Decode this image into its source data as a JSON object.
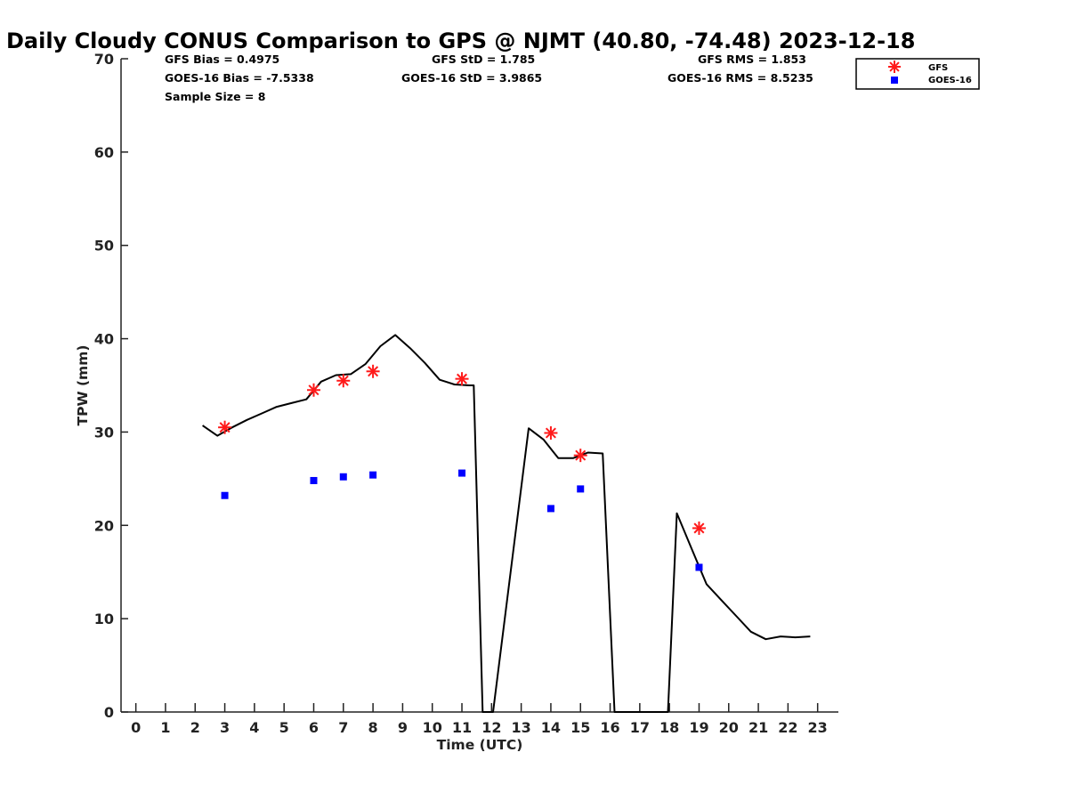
{
  "chart_data": {
    "type": "line",
    "title": "Daily Cloudy CONUS Comparison to GPS @ NJMT (40.80, -74.48) 2023-12-18",
    "xlabel": "Time (UTC)",
    "ylabel": "TPW (mm)",
    "xlim": [
      -0.5,
      23.7
    ],
    "ylim": [
      0,
      70
    ],
    "x_ticks": [
      "0",
      "1",
      "2",
      "3",
      "4",
      "5",
      "6",
      "7",
      "8",
      "9",
      "10",
      "11",
      "12",
      "13",
      "14",
      "15",
      "16",
      "17",
      "18",
      "19",
      "20",
      "21",
      "22",
      "23"
    ],
    "y_ticks": [
      "0",
      "10",
      "20",
      "30",
      "40",
      "50",
      "60",
      "70"
    ],
    "grid": false,
    "legend_position": "top-right",
    "stats": {
      "gfs_bias": "GFS Bias = 0.4975",
      "goes_bias": "GOES-16 Bias = -7.5338",
      "sample_size": "Sample Size = 8",
      "gfs_std": "GFS StD = 1.785",
      "goes_std": "GOES-16 StD = 3.9865",
      "gfs_rms": "GFS RMS = 1.853",
      "goes_rms": "GOES-16 RMS = 8.5235"
    },
    "series": [
      {
        "name": "",
        "kind": "line",
        "color": "#000000",
        "points": [
          [
            2.25,
            30.7
          ],
          [
            2.75,
            29.6
          ],
          [
            3.25,
            30.5
          ],
          [
            3.75,
            31.3
          ],
          [
            4.25,
            32.0
          ],
          [
            4.75,
            32.7
          ],
          [
            5.25,
            33.1
          ],
          [
            5.75,
            33.5
          ],
          [
            6.25,
            35.4
          ],
          [
            6.75,
            36.1
          ],
          [
            7.25,
            36.2
          ],
          [
            7.75,
            37.3
          ],
          [
            8.25,
            39.2
          ],
          [
            8.75,
            40.4
          ],
          [
            9.25,
            39.0
          ],
          [
            9.75,
            37.4
          ],
          [
            10.25,
            35.6
          ],
          [
            10.75,
            35.1
          ],
          [
            11.25,
            35.0
          ],
          [
            11.4,
            35.0
          ],
          [
            11.7,
            0
          ],
          [
            12.05,
            0
          ],
          [
            13.25,
            30.4
          ],
          [
            13.75,
            29.2
          ],
          [
            14.25,
            27.2
          ],
          [
            14.75,
            27.2
          ],
          [
            15.25,
            27.8
          ],
          [
            15.75,
            27.7
          ],
          [
            16.15,
            0
          ],
          [
            17.95,
            0
          ],
          [
            18.25,
            21.3
          ],
          [
            18.75,
            17.5
          ],
          [
            19.25,
            13.7
          ],
          [
            19.75,
            12.0
          ],
          [
            20.25,
            10.3
          ],
          [
            20.75,
            8.6
          ],
          [
            21.25,
            7.8
          ],
          [
            21.75,
            8.1
          ],
          [
            22.25,
            8.0
          ],
          [
            22.75,
            8.1
          ]
        ]
      },
      {
        "name": "GFS",
        "kind": "asterisk",
        "color": "#ff1a1a",
        "x": [
          3,
          6,
          7,
          8,
          11,
          14,
          15,
          19
        ],
        "y": [
          30.5,
          34.5,
          35.5,
          36.5,
          35.7,
          29.9,
          27.5,
          19.7
        ]
      },
      {
        "name": "GOES-16",
        "kind": "square",
        "color": "#0000ff",
        "x": [
          3,
          6,
          7,
          8,
          11,
          14,
          15,
          19
        ],
        "y": [
          23.2,
          24.8,
          25.2,
          25.4,
          25.6,
          21.8,
          23.9,
          15.5
        ]
      }
    ]
  }
}
